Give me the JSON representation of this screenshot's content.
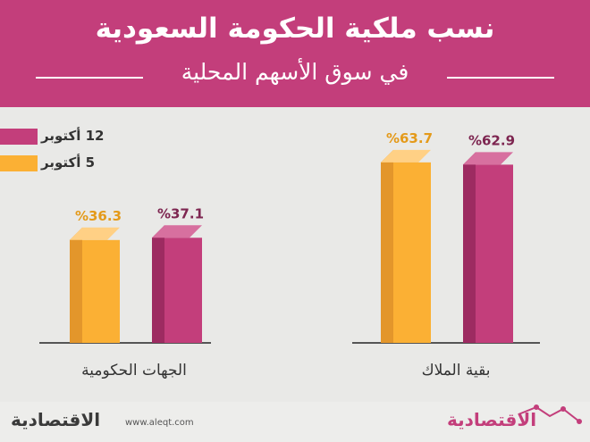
{
  "header": {
    "title": "نسب ملكية الحكومة السعودية",
    "subtitle": "في سوق الأسهم المحلية"
  },
  "colors": {
    "header": "#c33e7b",
    "series_12": "#c33e7b",
    "series_5": "#fbb034",
    "background": "#e9e9e7"
  },
  "chart_data": {
    "type": "bar",
    "categories": [
      "الجهات الحكومية",
      "بقية الملاك"
    ],
    "series": [
      {
        "name": "12 أكتوبر",
        "values": [
          37.1,
          62.9
        ],
        "labels": [
          "%37.1",
          "%62.9"
        ]
      },
      {
        "name": "5 أكتوبر",
        "values": [
          36.3,
          63.7
        ],
        "labels": [
          "%36.3",
          "%63.7"
        ]
      }
    ],
    "legend_position": "top-left",
    "ylim": [
      0,
      75
    ]
  },
  "footer": {
    "website": "www.aleqt.com",
    "logo_text": "الاقتصادية"
  }
}
